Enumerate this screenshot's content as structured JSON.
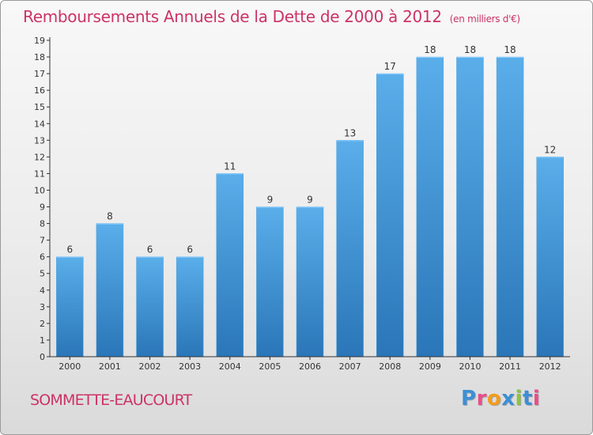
{
  "chart_data": {
    "type": "bar",
    "title": "Remboursements Annuels de la Dette de 2000 à 2012",
    "subtitle": "(en milliers d'€)",
    "categories": [
      "2000",
      "2001",
      "2002",
      "2003",
      "2004",
      "2005",
      "2006",
      "2007",
      "2008",
      "2009",
      "2010",
      "2011",
      "2012"
    ],
    "values": [
      6,
      8,
      6,
      6,
      11,
      9,
      9,
      13,
      17,
      18,
      18,
      18,
      12
    ],
    "ylim": [
      0,
      19
    ],
    "yticks": [
      0,
      1,
      2,
      3,
      4,
      5,
      6,
      7,
      8,
      9,
      10,
      11,
      12,
      13,
      14,
      15,
      16,
      17,
      18,
      19
    ],
    "grid": false,
    "legend": "none",
    "bar_color": "#4fa3e0"
  },
  "footer": {
    "commune": "SOMMETTE-EAUCOURT",
    "logo": "Proxiti"
  },
  "colors": {
    "title": "#cc3366",
    "logo_letters": [
      "#3b8fd6",
      "#e94d8a",
      "#f39c1c",
      "#3b8fd6",
      "#8bc43f",
      "#3b8fd6",
      "#e94d8a"
    ]
  }
}
